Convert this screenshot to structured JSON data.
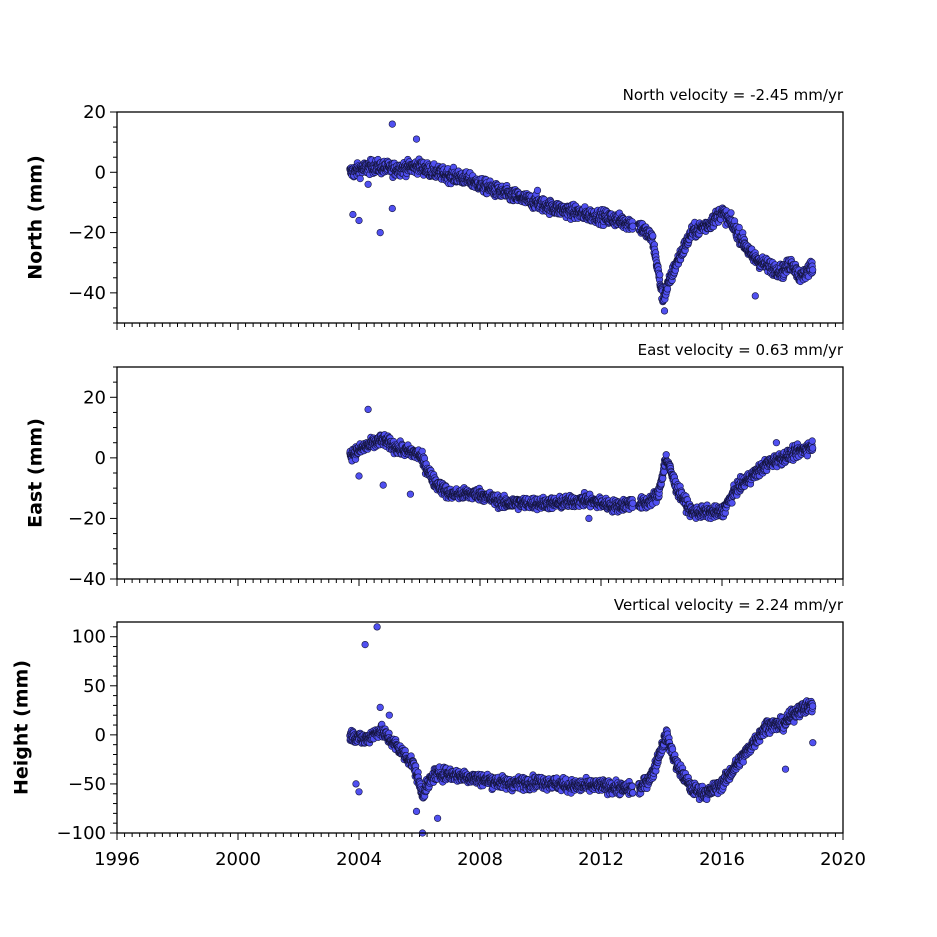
{
  "chart_data": [
    {
      "type": "scatter",
      "title": "North velocity = -2.45 mm/yr",
      "ylabel": "North (mm)",
      "xlabel": "",
      "xlim": [
        1996,
        2020
      ],
      "ylim": [
        -50,
        20
      ],
      "yticks": [
        20,
        0,
        -20,
        -40
      ],
      "xticks": [
        1996,
        2000,
        2004,
        2008,
        2012,
        2016,
        2020
      ],
      "grid": false,
      "series": [
        {
          "color": "#5050f0",
          "trend": [
            [
              2003.7,
              0
            ],
            [
              2004.5,
              2
            ],
            [
              2005.2,
              1
            ],
            [
              2006.0,
              2
            ],
            [
              2006.5,
              0
            ],
            [
              2007.5,
              -2
            ],
            [
              2008.5,
              -6
            ],
            [
              2009.5,
              -9
            ],
            [
              2010.5,
              -12
            ],
            [
              2011.5,
              -14
            ],
            [
              2012.2,
              -15
            ],
            [
              2013.0,
              -17
            ],
            [
              2013.3,
              -18
            ],
            [
              2013.7,
              -22
            ],
            [
              2014.05,
              -42
            ],
            [
              2014.5,
              -30
            ],
            [
              2015.0,
              -20
            ],
            [
              2015.6,
              -17
            ],
            [
              2016.0,
              -13
            ],
            [
              2016.4,
              -18
            ],
            [
              2017.0,
              -28
            ],
            [
              2017.5,
              -31
            ],
            [
              2018.0,
              -33
            ],
            [
              2018.3,
              -30
            ],
            [
              2018.6,
              -35
            ],
            [
              2019.0,
              -31
            ]
          ],
          "outliers": [
            [
              2005.1,
              16
            ],
            [
              2005.9,
              11
            ],
            [
              2004.7,
              -20
            ],
            [
              2003.8,
              -14
            ],
            [
              2004.0,
              -16
            ],
            [
              2005.1,
              -12
            ],
            [
              2014.1,
              -46
            ],
            [
              2017.1,
              -41
            ],
            [
              2009.9,
              -6
            ],
            [
              2004.3,
              -4
            ]
          ]
        }
      ]
    },
    {
      "type": "scatter",
      "title": "East velocity = 0.63 mm/yr",
      "ylabel": "East (mm)",
      "xlabel": "",
      "xlim": [
        1996,
        2020
      ],
      "ylim": [
        -40,
        30
      ],
      "yticks": [
        20,
        0,
        -20,
        -40
      ],
      "xticks": [
        1996,
        2000,
        2004,
        2008,
        2012,
        2016,
        2020
      ],
      "grid": false,
      "series": [
        {
          "color": "#5050f0",
          "trend": [
            [
              2003.7,
              1
            ],
            [
              2004.3,
              4
            ],
            [
              2004.8,
              6
            ],
            [
              2005.3,
              3
            ],
            [
              2006.0,
              1
            ],
            [
              2006.5,
              -8
            ],
            [
              2007.0,
              -12
            ],
            [
              2008.0,
              -12
            ],
            [
              2008.8,
              -15
            ],
            [
              2009.5,
              -15
            ],
            [
              2010.5,
              -15
            ],
            [
              2011.5,
              -14
            ],
            [
              2012.5,
              -16
            ],
            [
              2013.0,
              -15
            ],
            [
              2013.5,
              -15
            ],
            [
              2013.9,
              -12
            ],
            [
              2014.15,
              0
            ],
            [
              2014.5,
              -10
            ],
            [
              2015.0,
              -18
            ],
            [
              2015.5,
              -18
            ],
            [
              2016.0,
              -18
            ],
            [
              2016.5,
              -10
            ],
            [
              2017.0,
              -6
            ],
            [
              2017.5,
              -2
            ],
            [
              2018.0,
              0
            ],
            [
              2018.5,
              2
            ],
            [
              2019.0,
              4
            ]
          ],
          "outliers": [
            [
              2004.3,
              16
            ],
            [
              2004.8,
              -9
            ],
            [
              2005.7,
              -12
            ],
            [
              2011.6,
              -20
            ],
            [
              2004.0,
              -6
            ],
            [
              2017.8,
              5
            ]
          ]
        }
      ]
    },
    {
      "type": "scatter",
      "title": "Vertical velocity = 2.24 mm/yr",
      "ylabel": "Height (mm)",
      "xlabel": "",
      "xlim": [
        1996,
        2020
      ],
      "ylim": [
        -100,
        115
      ],
      "yticks": [
        100,
        50,
        0,
        -50,
        -100
      ],
      "xticks": [
        1996,
        2000,
        2004,
        2008,
        2012,
        2016,
        2020
      ],
      "grid": false,
      "series": [
        {
          "color": "#5050f0",
          "trend": [
            [
              2003.7,
              0
            ],
            [
              2004.2,
              -5
            ],
            [
              2004.7,
              5
            ],
            [
              2005.2,
              -10
            ],
            [
              2005.8,
              -30
            ],
            [
              2006.1,
              -60
            ],
            [
              2006.5,
              -40
            ],
            [
              2007.0,
              -40
            ],
            [
              2008.0,
              -45
            ],
            [
              2009.0,
              -50
            ],
            [
              2010.0,
              -48
            ],
            [
              2011.0,
              -52
            ],
            [
              2012.0,
              -52
            ],
            [
              2012.8,
              -55
            ],
            [
              2013.3,
              -55
            ],
            [
              2013.7,
              -40
            ],
            [
              2014.15,
              0
            ],
            [
              2014.5,
              -30
            ],
            [
              2015.0,
              -55
            ],
            [
              2015.5,
              -60
            ],
            [
              2016.0,
              -50
            ],
            [
              2016.5,
              -30
            ],
            [
              2017.0,
              -10
            ],
            [
              2017.5,
              10
            ],
            [
              2018.0,
              10
            ],
            [
              2018.5,
              25
            ],
            [
              2019.0,
              30
            ]
          ],
          "outliers": [
            [
              2004.2,
              92
            ],
            [
              2004.6,
              110
            ],
            [
              2004.7,
              28
            ],
            [
              2005.0,
              20
            ],
            [
              2006.1,
              -100
            ],
            [
              2006.6,
              -85
            ],
            [
              2005.9,
              -78
            ],
            [
              2003.9,
              -50
            ],
            [
              2004.0,
              -58
            ],
            [
              2018.1,
              -35
            ],
            [
              2019.0,
              -8
            ]
          ]
        }
      ]
    }
  ]
}
